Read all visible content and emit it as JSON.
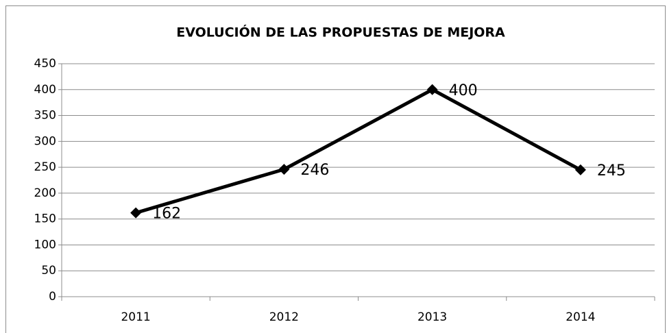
{
  "chart_data": {
    "type": "line",
    "title": "EVOLUCIÓN DE LAS PROPUESTAS DE MEJORA",
    "categories": [
      "2011",
      "2012",
      "2013",
      "2014"
    ],
    "values": [
      162,
      246,
      400,
      245
    ],
    "color": "#000000",
    "ylim": [
      0,
      450
    ],
    "yticks": [
      0,
      50,
      100,
      150,
      200,
      250,
      300,
      350,
      400,
      450
    ],
    "grid": true
  }
}
